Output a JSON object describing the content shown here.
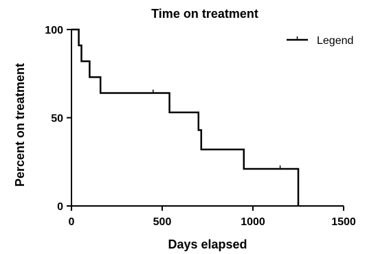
{
  "chart_data": {
    "type": "line",
    "subtype": "kaplan-meier-step",
    "title": "Time on treatment",
    "xlabel": "Days elapsed",
    "ylabel": "Percent on treatment",
    "xlim": [
      0,
      1500
    ],
    "ylim": [
      0,
      100
    ],
    "x_ticks": [
      0,
      500,
      1000,
      1500
    ],
    "y_ticks": [
      0,
      50,
      100
    ],
    "grid": false,
    "legend_position": "top-right",
    "color": "#000000",
    "series": [
      {
        "name": "Legend",
        "steps": [
          [
            0,
            100
          ],
          [
            40,
            100
          ],
          [
            40,
            91
          ],
          [
            55,
            91
          ],
          [
            55,
            82
          ],
          [
            100,
            82
          ],
          [
            100,
            73
          ],
          [
            160,
            73
          ],
          [
            160,
            64
          ],
          [
            540,
            64
          ],
          [
            540,
            53
          ],
          [
            700,
            53
          ],
          [
            700,
            43
          ],
          [
            715,
            43
          ],
          [
            715,
            32
          ],
          [
            950,
            32
          ],
          [
            950,
            21
          ],
          [
            1250,
            21
          ],
          [
            1250,
            0
          ]
        ],
        "censored": [
          [
            450,
            64
          ],
          [
            1150,
            21
          ]
        ]
      }
    ]
  }
}
